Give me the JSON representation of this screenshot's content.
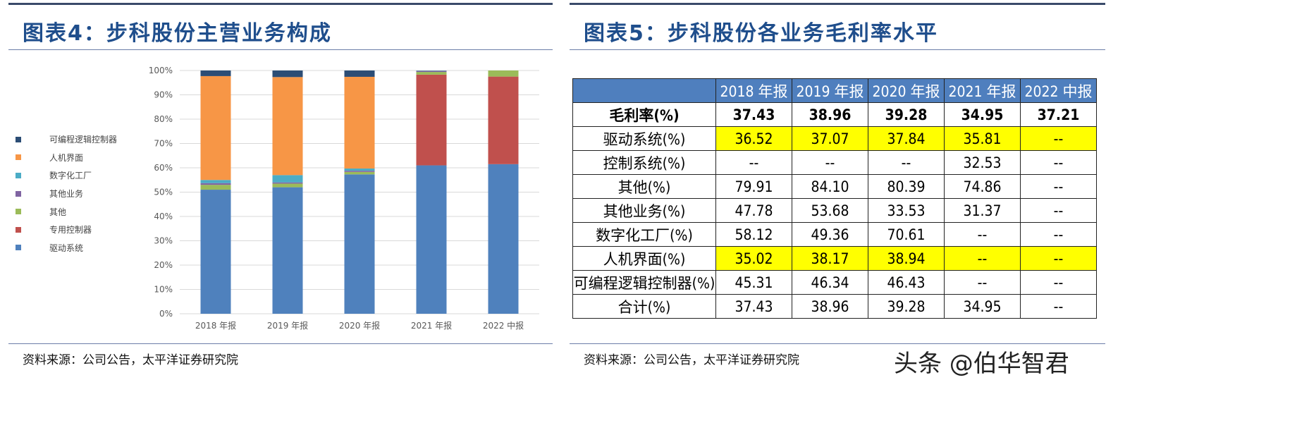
{
  "left": {
    "title": "图表4：步科股份主营业务构成",
    "source": "资料来源：公司公告，太平洋证券研究院"
  },
  "right": {
    "title": "图表5：步科股份各业务毛利率水平",
    "source": "资料来源：公司公告，太平洋证券研究院",
    "table": {
      "header": [
        "",
        "2018 年报",
        "2019 年报",
        "2020 年报",
        "2021 年报",
        "2022 中报"
      ],
      "rows": [
        {
          "label": "毛利率(%)",
          "values": [
            "37.43",
            "38.96",
            "39.28",
            "34.95",
            "37.21"
          ],
          "bold": true,
          "highlight": [
            false,
            false,
            false,
            false,
            false
          ]
        },
        {
          "label": "驱动系统(%)",
          "values": [
            "36.52",
            "37.07",
            "37.84",
            "35.81",
            "--"
          ],
          "highlight": [
            true,
            true,
            true,
            true,
            true
          ]
        },
        {
          "label": "控制系统(%)",
          "values": [
            "--",
            "--",
            "--",
            "32.53",
            "--"
          ],
          "highlight": [
            false,
            false,
            false,
            false,
            false
          ]
        },
        {
          "label": "其他(%)",
          "values": [
            "79.91",
            "84.10",
            "80.39",
            "74.86",
            "--"
          ],
          "highlight": [
            false,
            false,
            false,
            false,
            false
          ]
        },
        {
          "label": "其他业务(%)",
          "values": [
            "47.78",
            "53.68",
            "33.53",
            "31.37",
            "--"
          ],
          "highlight": [
            false,
            false,
            false,
            false,
            false
          ]
        },
        {
          "label": "数字化工厂(%)",
          "values": [
            "58.12",
            "49.36",
            "70.61",
            "--",
            "--"
          ],
          "highlight": [
            false,
            false,
            false,
            false,
            false
          ]
        },
        {
          "label": "人机界面(%)",
          "values": [
            "35.02",
            "38.17",
            "38.94",
            "--",
            "--"
          ],
          "highlight": [
            true,
            true,
            true,
            true,
            true
          ]
        },
        {
          "label": "可编程逻辑控制器(%)",
          "values": [
            "45.31",
            "46.34",
            "46.43",
            "--",
            "--"
          ],
          "highlight": [
            false,
            false,
            false,
            false,
            false
          ]
        },
        {
          "label": "合计(%)",
          "values": [
            "37.43",
            "38.96",
            "39.28",
            "34.95",
            "--"
          ],
          "highlight": [
            false,
            false,
            false,
            false,
            false
          ]
        }
      ]
    },
    "highlight_color": "#ffff00",
    "header_color": "#4f7fbe"
  },
  "watermark": "头条 @伯华智君",
  "chart_data": {
    "type": "bar",
    "stacked": true,
    "categories": [
      "2018 年报",
      "2019 年报",
      "2020 年报",
      "2021 年报",
      "2022 中报"
    ],
    "ylim": [
      0,
      100
    ],
    "yticks": [
      "0%",
      "10%",
      "20%",
      "30%",
      "40%",
      "50%",
      "60%",
      "70%",
      "80%",
      "90%",
      "100%"
    ],
    "grid": true,
    "legend": "left",
    "series": [
      {
        "name": "驱动系统",
        "color": "#4f81bd",
        "values": [
          51.0,
          52.0,
          57.3,
          61.0,
          61.5
        ]
      },
      {
        "name": "专用控制器",
        "color": "#c0504d",
        "values": [
          0,
          0,
          0,
          37.3,
          36.0
        ]
      },
      {
        "name": "其他",
        "color": "#9bbb59",
        "values": [
          2.0,
          1.5,
          1.0,
          1.1,
          2.5
        ]
      },
      {
        "name": "其他业务",
        "color": "#8064a2",
        "values": [
          0.7,
          0.5,
          0.5,
          0.4,
          0
        ]
      },
      {
        "name": "数字化工厂",
        "color": "#4bacc6",
        "values": [
          1.3,
          3.0,
          0.9,
          0.1,
          0
        ]
      },
      {
        "name": "人机界面",
        "color": "#f79646",
        "values": [
          42.7,
          40.3,
          37.7,
          0,
          0
        ]
      },
      {
        "name": "可编程逻辑控制器",
        "color": "#2c4d75",
        "values": [
          2.3,
          2.7,
          2.6,
          0.1,
          0
        ]
      }
    ]
  }
}
